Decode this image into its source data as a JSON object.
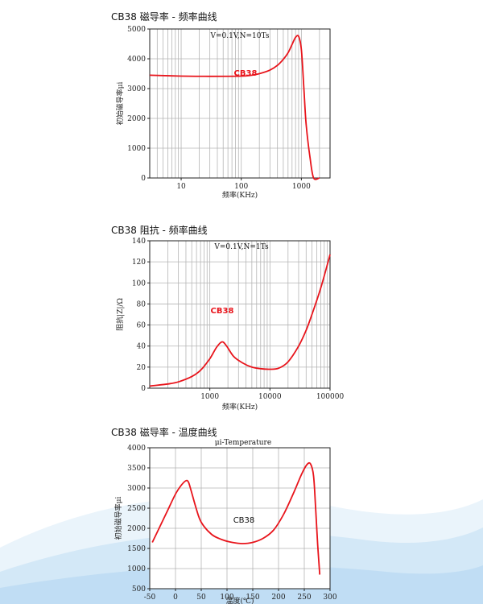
{
  "sections": [
    {
      "title": "CB38 磁导率 - 频率曲线"
    },
    {
      "title": "CB38 阻抗 - 频率曲线"
    },
    {
      "title": "CB38 磁导率 - 温度曲线"
    }
  ],
  "colors": {
    "curve": "#e8141b",
    "grid": "#b5b5b5",
    "axis": "#222222"
  },
  "chart_data": [
    {
      "type": "line",
      "title": "CB38 磁导率 - 频率曲线",
      "annotation": "V=0.1V,N=10Ts",
      "xlabel": "频率(KHz)",
      "ylabel": "初始磁导率μi",
      "xscale": "log",
      "xlim": [
        3,
        3000
      ],
      "ylim": [
        0,
        5000
      ],
      "xticks": [
        10,
        100,
        1000
      ],
      "yticks": [
        0,
        1000,
        2000,
        3000,
        4000,
        5000
      ],
      "grid": true,
      "series": [
        {
          "name": "CB38",
          "x": [
            3,
            10,
            30,
            100,
            150,
            200,
            300,
            400,
            500,
            600,
            700,
            800,
            900,
            1000,
            1100,
            1200,
            1400,
            1600,
            2000
          ],
          "y": [
            3450,
            3420,
            3410,
            3420,
            3450,
            3500,
            3620,
            3780,
            3980,
            4200,
            4480,
            4720,
            4750,
            4300,
            3000,
            1800,
            650,
            0,
            0
          ]
        }
      ]
    },
    {
      "type": "line",
      "title": "CB38 阻抗 - 频率曲线",
      "annotation": "V=0.1V,N=1Ts",
      "xlabel": "频率(KHz)",
      "ylabel": "阻抗|Z|/Ω",
      "xscale": "log",
      "xlim": [
        100,
        100000
      ],
      "ylim": [
        0,
        140
      ],
      "xticks": [
        1000,
        10000,
        100000
      ],
      "yticks": [
        0,
        20,
        40,
        60,
        80,
        100,
        120,
        140
      ],
      "grid": true,
      "series": [
        {
          "name": "CB38",
          "x": [
            100,
            200,
            300,
            500,
            700,
            1000,
            1300,
            1600,
            1900,
            2500,
            3500,
            5000,
            7000,
            10000,
            14000,
            20000,
            30000,
            40000,
            50000,
            70000,
            100000
          ],
          "y": [
            2,
            4,
            6,
            11,
            17,
            28,
            39,
            44,
            40,
            30,
            24,
            20,
            18.5,
            18,
            19,
            25,
            40,
            55,
            70,
            95,
            127
          ]
        }
      ]
    },
    {
      "type": "line",
      "title": "CB38 磁导率 - 温度曲线",
      "annotation": "μi-Temperature",
      "xlabel": "温度(℃)",
      "ylabel": "初始磁导率μi",
      "xlim": [
        -50,
        300
      ],
      "ylim": [
        500,
        4000
      ],
      "xticks": [
        -50,
        0,
        50,
        100,
        150,
        200,
        250,
        300
      ],
      "yticks": [
        500,
        1000,
        1500,
        2000,
        2500,
        3000,
        3500,
        4000
      ],
      "grid": true,
      "series": [
        {
          "name": "CB38",
          "x": [
            -45,
            -30,
            -15,
            0,
            10,
            20,
            25,
            30,
            40,
            50,
            70,
            90,
            110,
            130,
            150,
            170,
            190,
            210,
            230,
            245,
            255,
            262,
            268,
            272,
            276,
            280
          ],
          "y": [
            1650,
            2050,
            2450,
            2850,
            3050,
            3180,
            3150,
            2950,
            2500,
            2150,
            1850,
            1720,
            1650,
            1620,
            1650,
            1750,
            1950,
            2350,
            2900,
            3350,
            3580,
            3600,
            3300,
            2500,
            1600,
            850
          ]
        }
      ]
    }
  ]
}
